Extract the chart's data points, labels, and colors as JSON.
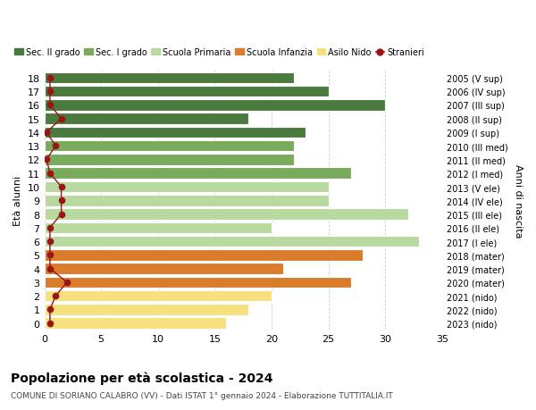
{
  "ages": [
    18,
    17,
    16,
    15,
    14,
    13,
    12,
    11,
    10,
    9,
    8,
    7,
    6,
    5,
    4,
    3,
    2,
    1,
    0
  ],
  "years": [
    "2005 (V sup)",
    "2006 (IV sup)",
    "2007 (III sup)",
    "2008 (II sup)",
    "2009 (I sup)",
    "2010 (III med)",
    "2011 (II med)",
    "2012 (I med)",
    "2013 (V ele)",
    "2014 (IV ele)",
    "2015 (III ele)",
    "2016 (II ele)",
    "2017 (I ele)",
    "2018 (mater)",
    "2019 (mater)",
    "2020 (mater)",
    "2021 (nido)",
    "2022 (nido)",
    "2023 (nido)"
  ],
  "values": [
    22,
    25,
    30,
    18,
    23,
    22,
    22,
    27,
    25,
    25,
    32,
    20,
    33,
    28,
    21,
    27,
    20,
    18,
    16
  ],
  "colors": [
    "#4a7a3e",
    "#4a7a3e",
    "#4a7a3e",
    "#4a7a3e",
    "#4a7a3e",
    "#7aaa5c",
    "#7aaa5c",
    "#7aaa5c",
    "#b8d9a0",
    "#b8d9a0",
    "#b8d9a0",
    "#b8d9a0",
    "#b8d9a0",
    "#d97c2b",
    "#d97c2b",
    "#d97c2b",
    "#f7e07e",
    "#f7e07e",
    "#f7e07e"
  ],
  "stranieri_x": [
    0.5,
    0.5,
    0.5,
    1.5,
    0.2,
    1.0,
    0.2,
    0.5,
    1.5,
    1.5,
    1.5,
    0.5,
    0.5,
    0.5,
    0.5,
    2.0,
    1.0,
    0.5,
    0.5
  ],
  "stranieri_color": "#9b1515",
  "legend_labels": [
    "Sec. II grado",
    "Sec. I grado",
    "Scuola Primaria",
    "Scuola Infanzia",
    "Asilo Nido",
    "Stranieri"
  ],
  "legend_colors": [
    "#4a7a3e",
    "#7aaa5c",
    "#b8d9a0",
    "#d97c2b",
    "#f7e07e",
    "#9b1515"
  ],
  "title": "Popolazione per età scolastica - 2024",
  "subtitle": "COMUNE DI SORIANO CALABRO (VV) - Dati ISTAT 1° gennaio 2024 - Elaborazione TUTTITALIA.IT",
  "ylabel": "Età alunni",
  "right_ylabel": "Anni di nascita",
  "xlim": [
    0,
    35
  ],
  "xticks": [
    0,
    5,
    10,
    15,
    20,
    25,
    30,
    35
  ],
  "background_color": "#ffffff",
  "grid_color": "#cccccc"
}
